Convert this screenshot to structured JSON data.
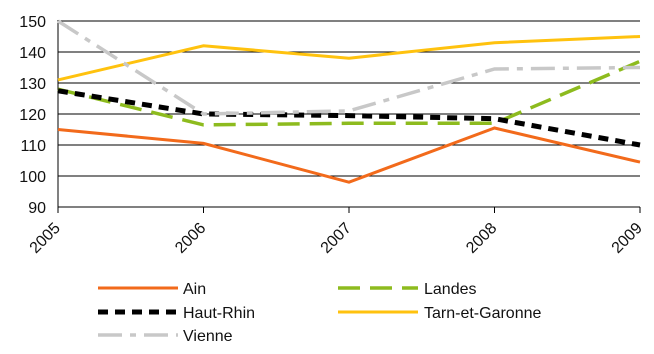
{
  "chart_data": {
    "type": "line",
    "title": "",
    "xlabel": "",
    "ylabel": "",
    "x": [
      "2005",
      "2006",
      "2007",
      "2008",
      "2009"
    ],
    "ylim": [
      90,
      150
    ],
    "yticks": [
      90,
      100,
      110,
      120,
      130,
      140,
      150
    ],
    "grid": "horizontal",
    "legend_position": "bottom",
    "series": [
      {
        "name": "Ain",
        "values": [
          115,
          110.5,
          98,
          115.5,
          104.5
        ],
        "color": "#f26a1b",
        "style": "solid"
      },
      {
        "name": "Landes",
        "values": [
          128,
          116.5,
          117,
          117,
          137
        ],
        "color": "#8dbb1e",
        "style": "long-dash"
      },
      {
        "name": "Haut-Rhin",
        "values": [
          127.5,
          120,
          119.5,
          118.5,
          110
        ],
        "color": "#000000",
        "style": "short-dash"
      },
      {
        "name": "Tarn-et-Garonne",
        "values": [
          131,
          142,
          138,
          143,
          145
        ],
        "color": "#ffc20e",
        "style": "solid"
      },
      {
        "name": "Vienne",
        "values": [
          150,
          120,
          121,
          134.5,
          135
        ],
        "color": "#c8c8c8",
        "style": "dash-dot"
      }
    ]
  }
}
